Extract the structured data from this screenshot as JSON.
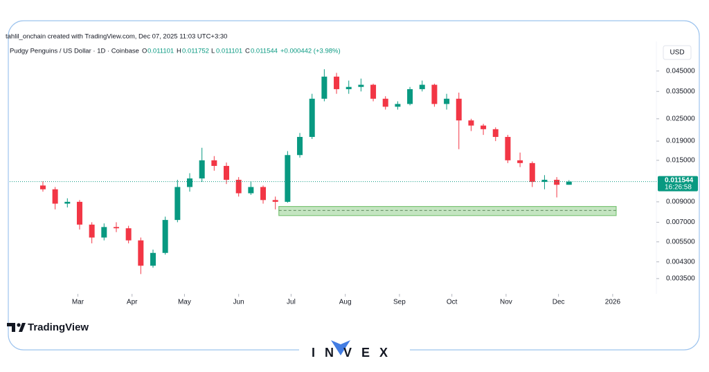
{
  "attribution": "tahlil_onchain created with TradingView.com, Dec 07, 2025 11:03 UTC+3:30",
  "brand": "TradingView",
  "watermark": "INVEX",
  "chart_data": {
    "type": "candlestick",
    "title": "Pudgy Penguins / US Dollar · 1D · Coinbase",
    "ohlc_labels": [
      "O",
      "H",
      "L",
      "C"
    ],
    "change": "+0.000442 (+3.98%)",
    "currency": "USD",
    "countdown": "16:26:58",
    "x": [
      "2025-02-09",
      "2025-02-16",
      "2025-02-23",
      "2025-03-02",
      "2025-03-09",
      "2025-03-16",
      "2025-03-23",
      "2025-03-30",
      "2025-04-06",
      "2025-04-13",
      "2025-04-20",
      "2025-04-27",
      "2025-05-04",
      "2025-05-11",
      "2025-05-18",
      "2025-05-25",
      "2025-06-01",
      "2025-06-08",
      "2025-06-15",
      "2025-06-22",
      "2025-06-29",
      "2025-07-06",
      "2025-07-13",
      "2025-07-20",
      "2025-07-27",
      "2025-08-03",
      "2025-08-10",
      "2025-08-17",
      "2025-08-24",
      "2025-08-31",
      "2025-09-07",
      "2025-09-14",
      "2025-09-21",
      "2025-09-28",
      "2025-10-05",
      "2025-10-12",
      "2025-10-19",
      "2025-10-26",
      "2025-11-02",
      "2025-11-09",
      "2025-11-16",
      "2025-11-23",
      "2025-11-30",
      "2025-12-07"
    ],
    "open": [
      0.011,
      0.0105,
      0.0088,
      0.009,
      0.0068,
      0.0058,
      0.0066,
      0.0065,
      0.0056,
      0.0041,
      0.0048,
      0.0072,
      0.0108,
      0.012,
      0.015,
      0.014,
      0.0118,
      0.01,
      0.0108,
      0.0092,
      0.009,
      0.016,
      0.02,
      0.032,
      0.042,
      0.036,
      0.037,
      0.038,
      0.032,
      0.029,
      0.03,
      0.036,
      0.038,
      0.03,
      0.032,
      0.0245,
      0.023,
      0.022,
      0.02,
      0.015,
      0.0145,
      0.0115,
      0.0118,
      0.011101
    ],
    "high": [
      0.0116,
      0.0108,
      0.0094,
      0.0092,
      0.007,
      0.0069,
      0.007,
      0.0067,
      0.0058,
      0.005,
      0.0075,
      0.0118,
      0.0128,
      0.0175,
      0.0158,
      0.0146,
      0.0122,
      0.0116,
      0.011,
      0.0096,
      0.0168,
      0.021,
      0.034,
      0.046,
      0.044,
      0.04,
      0.041,
      0.0385,
      0.033,
      0.031,
      0.037,
      0.04,
      0.0385,
      0.034,
      0.0345,
      0.025,
      0.0235,
      0.0225,
      0.0205,
      0.0165,
      0.0148,
      0.0125,
      0.0122,
      0.011752
    ],
    "low": [
      0.0102,
      0.0082,
      0.0084,
      0.0064,
      0.0054,
      0.0056,
      0.0062,
      0.0054,
      0.0037,
      0.004,
      0.0047,
      0.007,
      0.0102,
      0.0115,
      0.0132,
      0.0112,
      0.0096,
      0.0098,
      0.0088,
      0.0082,
      0.0089,
      0.0155,
      0.0195,
      0.031,
      0.034,
      0.034,
      0.035,
      0.031,
      0.028,
      0.028,
      0.0295,
      0.035,
      0.029,
      0.028,
      0.0172,
      0.0215,
      0.0205,
      0.019,
      0.0145,
      0.0138,
      0.0108,
      0.0105,
      0.0095,
      0.011101
    ],
    "close": [
      0.0105,
      0.0088,
      0.009,
      0.0068,
      0.0058,
      0.0066,
      0.0065,
      0.0056,
      0.0041,
      0.0048,
      0.0072,
      0.0108,
      0.012,
      0.015,
      0.014,
      0.0118,
      0.01,
      0.0108,
      0.0092,
      0.009,
      0.016,
      0.02,
      0.032,
      0.042,
      0.036,
      0.037,
      0.038,
      0.032,
      0.029,
      0.03,
      0.036,
      0.038,
      0.03,
      0.032,
      0.0245,
      0.023,
      0.022,
      0.02,
      0.015,
      0.0145,
      0.0115,
      0.0118,
      0.0111,
      0.011544
    ],
    "up_color": "#089981",
    "down_color": "#f23645",
    "log_y": true,
    "xlim": [
      "2025-01-21",
      "2026-01-26"
    ],
    "xticks": [
      {
        "value": "2025-03-01",
        "label": "Mar"
      },
      {
        "value": "2025-04-01",
        "label": "Apr"
      },
      {
        "value": "2025-05-01",
        "label": "May"
      },
      {
        "value": "2025-06-01",
        "label": "Jun"
      },
      {
        "value": "2025-07-01",
        "label": "Jul"
      },
      {
        "value": "2025-08-01",
        "label": "Aug"
      },
      {
        "value": "2025-09-01",
        "label": "Sep"
      },
      {
        "value": "2025-10-01",
        "label": "Oct"
      },
      {
        "value": "2025-11-01",
        "label": "Nov"
      },
      {
        "value": "2025-12-01",
        "label": "Dec"
      },
      {
        "value": "2026-01-01",
        "label": "2026"
      }
    ],
    "ylim": [
      0.0029,
      0.051
    ],
    "yticks": [
      {
        "value": 0.0035,
        "label": "0.003500"
      },
      {
        "value": 0.0043,
        "label": "0.004300"
      },
      {
        "value": 0.0055,
        "label": "0.005500"
      },
      {
        "value": 0.007,
        "label": "0.007000"
      },
      {
        "value": 0.009,
        "label": "0.009000"
      },
      {
        "value": 0.015,
        "label": "0.015000"
      },
      {
        "value": 0.019,
        "label": "0.019000"
      },
      {
        "value": 0.025,
        "label": "0.025000"
      },
      {
        "value": 0.035,
        "label": "0.035000"
      },
      {
        "value": 0.045,
        "label": "0.045000"
      }
    ],
    "zone": {
      "low": 0.0076,
      "high": 0.0085,
      "mid": 0.0081,
      "start": "2025-06-24",
      "end": "2026-01-03",
      "color": "#7cc576"
    }
  }
}
